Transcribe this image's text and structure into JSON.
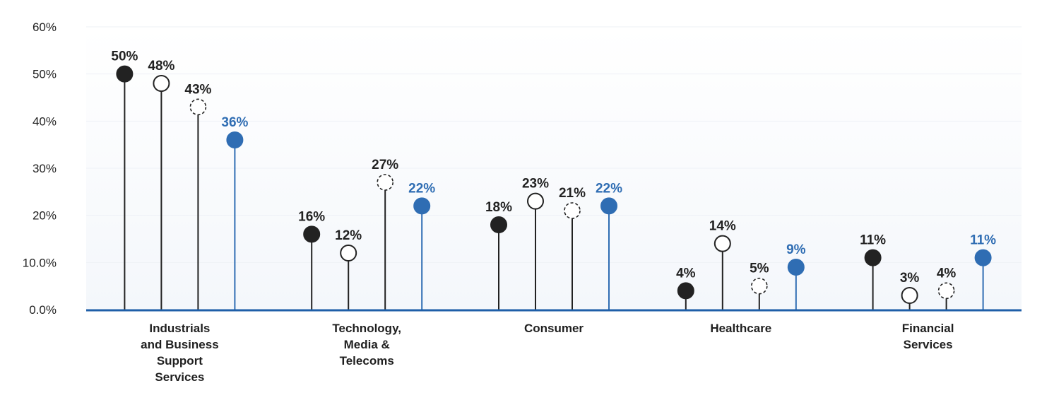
{
  "chart_data": {
    "type": "scatter",
    "subtype": "lollipop",
    "ylim": [
      0,
      60
    ],
    "yticks": [
      {
        "value": 0,
        "label": "0.0%"
      },
      {
        "value": 10,
        "label": "10.0%"
      },
      {
        "value": 20,
        "label": "20%"
      },
      {
        "value": 30,
        "label": "30%"
      },
      {
        "value": 40,
        "label": "40%"
      },
      {
        "value": 50,
        "label": "50%"
      },
      {
        "value": 60,
        "label": "60%"
      }
    ],
    "grid": true,
    "categories": [
      {
        "label_lines": [
          "Industrials",
          "and Business",
          "Support",
          "Services"
        ],
        "values": [
          {
            "value": 50,
            "label": "50%",
            "style": "filled-dark",
            "color": "#222222"
          },
          {
            "value": 48,
            "label": "48%",
            "style": "outline",
            "color": "#222222"
          },
          {
            "value": 43,
            "label": "43%",
            "style": "dashed",
            "color": "#222222"
          },
          {
            "value": 36,
            "label": "36%",
            "style": "filled-blue",
            "color": "#2f6db3"
          }
        ]
      },
      {
        "label_lines": [
          "Technology,",
          "Media &",
          "Telecoms"
        ],
        "values": [
          {
            "value": 16,
            "label": "16%",
            "style": "filled-dark",
            "color": "#222222"
          },
          {
            "value": 12,
            "label": "12%",
            "style": "outline",
            "color": "#222222"
          },
          {
            "value": 27,
            "label": "27%",
            "style": "dashed",
            "color": "#222222"
          },
          {
            "value": 22,
            "label": "22%",
            "style": "filled-blue",
            "color": "#2f6db3"
          }
        ]
      },
      {
        "label_lines": [
          "Consumer"
        ],
        "values": [
          {
            "value": 18,
            "label": "18%",
            "style": "filled-dark",
            "color": "#222222"
          },
          {
            "value": 23,
            "label": "23%",
            "style": "outline",
            "color": "#222222"
          },
          {
            "value": 21,
            "label": "21%",
            "style": "dashed",
            "color": "#222222"
          },
          {
            "value": 22,
            "label": "22%",
            "style": "filled-blue",
            "color": "#2f6db3"
          }
        ]
      },
      {
        "label_lines": [
          "Healthcare"
        ],
        "values": [
          {
            "value": 4,
            "label": "4%",
            "style": "filled-dark",
            "color": "#222222"
          },
          {
            "value": 14,
            "label": "14%",
            "style": "outline",
            "color": "#222222"
          },
          {
            "value": 5,
            "label": "5%",
            "style": "dashed",
            "color": "#222222"
          },
          {
            "value": 9,
            "label": "9%",
            "style": "filled-blue",
            "color": "#2f6db3"
          }
        ]
      },
      {
        "label_lines": [
          "Financial",
          "Services"
        ],
        "values": [
          {
            "value": 11,
            "label": "11%",
            "style": "filled-dark",
            "color": "#222222"
          },
          {
            "value": 3,
            "label": "3%",
            "style": "outline",
            "color": "#222222"
          },
          {
            "value": 4,
            "label": "4%",
            "style": "dashed",
            "color": "#222222"
          },
          {
            "value": 11,
            "label": "11%",
            "style": "filled-blue",
            "color": "#2f6db3"
          }
        ]
      }
    ]
  },
  "colors": {
    "dark": "#222222",
    "blue": "#2f6db3",
    "axis": "#1f5fa8",
    "grid": "#eef1f6",
    "plot_background_top": "#ffffff",
    "plot_background_bottom": "#f4f7fb"
  }
}
